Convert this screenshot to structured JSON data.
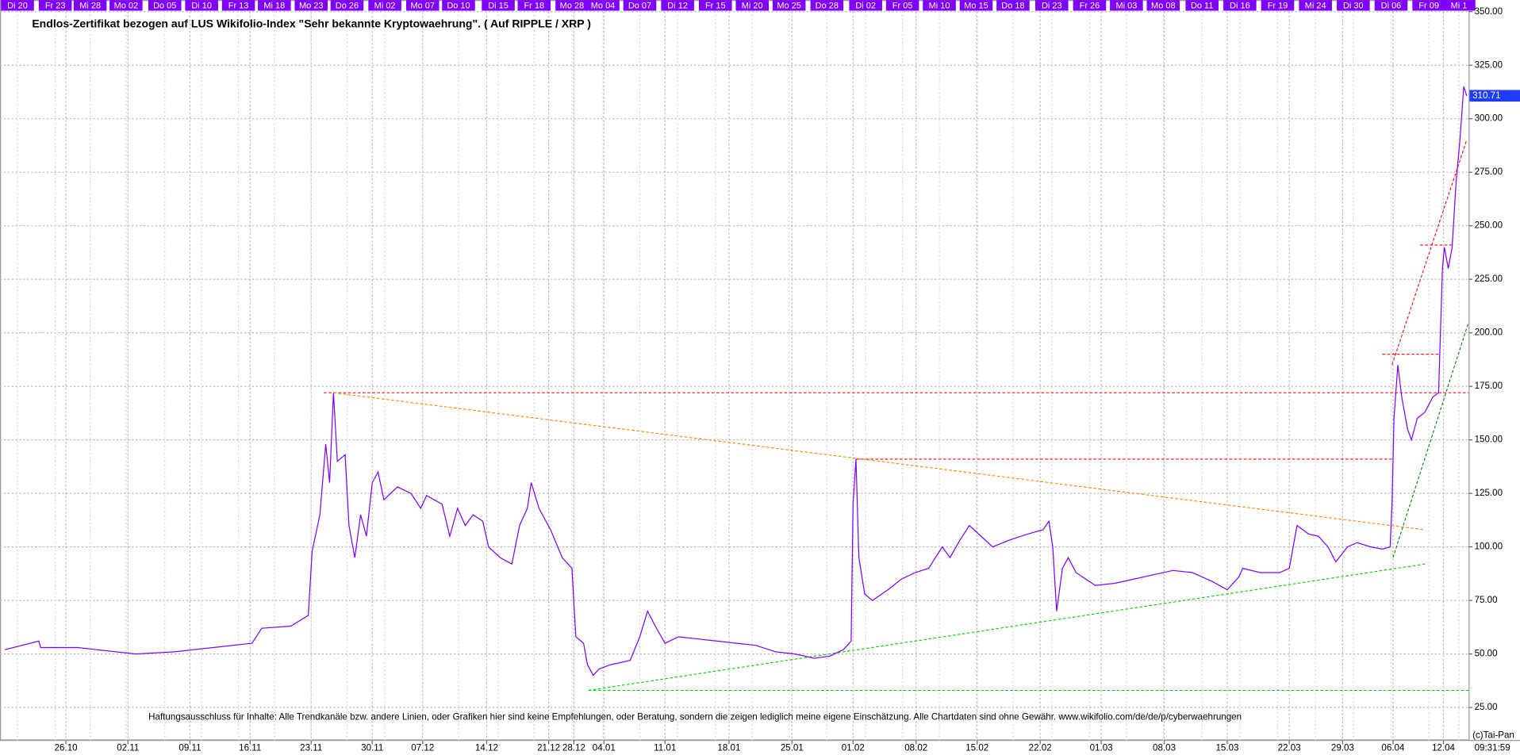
{
  "chart_data": {
    "type": "line",
    "title": "Endlos-Zertifikat bezogen auf LUS Wikifolio-Index \"Sehr bekannte Kryptowaehrung\". ( Auf RIPPLE / XRP )",
    "disclaimer": "Haftungsausschluss für Inhalte: Alle Trendkanäle bzw. andere Linien, oder Grafiken hier sind keine Empfehlungen, oder Beratung, sondern die zeigen lediglich meine eigene Einschätzung. Alle Chartdaten sind ohne Gewähr.  www.wikifolio.com/de/de/p/cyberwaehrungen",
    "copyright": "(c)Tai-Pan",
    "time": "09:31:59",
    "color": "#8000ff",
    "grid": true,
    "last_value": 310.71,
    "last_value_label": "310.71",
    "xlim": [
      0,
      1515
    ],
    "ylim": [
      7,
      355
    ],
    "yticks": [
      {
        "value": 25,
        "label": "25.00"
      },
      {
        "value": 50,
        "label": "50.00"
      },
      {
        "value": 75,
        "label": "75.00"
      },
      {
        "value": 100,
        "label": "100.00"
      },
      {
        "value": 125,
        "label": "125.00"
      },
      {
        "value": 150,
        "label": "150.00"
      },
      {
        "value": 175,
        "label": "175.00"
      },
      {
        "value": 200,
        "label": "200.00"
      },
      {
        "value": 225,
        "label": "225.00"
      },
      {
        "value": 250,
        "label": "250.00"
      },
      {
        "value": 275,
        "label": "275.00"
      },
      {
        "value": 300,
        "label": "300.00"
      },
      {
        "value": 325,
        "label": "325.00"
      },
      {
        "value": 350,
        "label": "350.00"
      }
    ],
    "xticks": [
      {
        "value": 68,
        "label": "26.10"
      },
      {
        "value": 132,
        "label": "02.11"
      },
      {
        "value": 196,
        "label": "09.11"
      },
      {
        "value": 258,
        "label": "16.11"
      },
      {
        "value": 321,
        "label": "23.11"
      },
      {
        "value": 384,
        "label": "30.11"
      },
      {
        "value": 436,
        "label": "07.12"
      },
      {
        "value": 502,
        "label": "14.12"
      },
      {
        "value": 566,
        "label": "21.12"
      },
      {
        "value": 592,
        "label": "28.12"
      },
      {
        "value": 623,
        "label": "04.01"
      },
      {
        "value": 686,
        "label": "11.01"
      },
      {
        "value": 752,
        "label": "18.01"
      },
      {
        "value": 817,
        "label": "25.01"
      },
      {
        "value": 880,
        "label": "01.02"
      },
      {
        "value": 945,
        "label": "08.02"
      },
      {
        "value": 1008,
        "label": "15.02"
      },
      {
        "value": 1073,
        "label": "22.02"
      },
      {
        "value": 1136,
        "label": "01.03"
      },
      {
        "value": 1201,
        "label": "08.03"
      },
      {
        "value": 1266,
        "label": "15.03"
      },
      {
        "value": 1330,
        "label": "22.03"
      },
      {
        "value": 1385,
        "label": "29.03"
      },
      {
        "value": 1437,
        "label": "06.04"
      },
      {
        "value": 1489,
        "label": "12.04"
      }
    ],
    "top_ticks": [
      {
        "value": 18,
        "label": "Di 20"
      },
      {
        "value": 57,
        "label": "Fr 23"
      },
      {
        "value": 93,
        "label": "Mi 28"
      },
      {
        "value": 130,
        "label": "Mo 02"
      },
      {
        "value": 170,
        "label": "Do 05"
      },
      {
        "value": 208,
        "label": "Di 10"
      },
      {
        "value": 246,
        "label": "Fr 13"
      },
      {
        "value": 283,
        "label": "Mi 18"
      },
      {
        "value": 321,
        "label": "Mo 23"
      },
      {
        "value": 358,
        "label": "Do 26"
      },
      {
        "value": 397,
        "label": "Mi 02"
      },
      {
        "value": 436,
        "label": "Mo 07"
      },
      {
        "value": 473,
        "label": "Do 10"
      },
      {
        "value": 514,
        "label": "Di 15"
      },
      {
        "value": 551,
        "label": "Fr 18"
      },
      {
        "value": 590,
        "label": "Mo 28"
      },
      {
        "value": 622,
        "label": "Mo 04"
      },
      {
        "value": 660,
        "label": "Do 07"
      },
      {
        "value": 699,
        "label": "Di 12"
      },
      {
        "value": 738,
        "label": "Fr 15"
      },
      {
        "value": 776,
        "label": "Mi 20"
      },
      {
        "value": 814,
        "label": "Mo 25"
      },
      {
        "value": 853,
        "label": "Do 28"
      },
      {
        "value": 893,
        "label": "Di 02"
      },
      {
        "value": 931,
        "label": "Fr 05"
      },
      {
        "value": 969,
        "label": "Mi 10"
      },
      {
        "value": 1007,
        "label": "Mo 15"
      },
      {
        "value": 1045,
        "label": "Do 18"
      },
      {
        "value": 1085,
        "label": "Di 23"
      },
      {
        "value": 1124,
        "label": "Fr 26"
      },
      {
        "value": 1162,
        "label": "Mi 03"
      },
      {
        "value": 1200,
        "label": "Mo 08"
      },
      {
        "value": 1240,
        "label": "Do 11"
      },
      {
        "value": 1279,
        "label": "Di 16"
      },
      {
        "value": 1318,
        "label": "Fr 19"
      },
      {
        "value": 1357,
        "label": "Mi 24"
      },
      {
        "value": 1396,
        "label": "Di 30"
      },
      {
        "value": 1435,
        "label": "Di 06"
      },
      {
        "value": 1474,
        "label": "Fr 09"
      },
      {
        "value": 1505,
        "label": "Mi 1"
      }
    ],
    "x": [
      5,
      40,
      42,
      80,
      100,
      140,
      180,
      220,
      260,
      270,
      300,
      318,
      322,
      330,
      336,
      340,
      344,
      348,
      356,
      360,
      366,
      372,
      378,
      384,
      390,
      396,
      410,
      424,
      434,
      440,
      456,
      464,
      472,
      480,
      488,
      498,
      504,
      516,
      528,
      536,
      544,
      548,
      556,
      568,
      580,
      590,
      594,
      602,
      606,
      612,
      618,
      630,
      650,
      660,
      668,
      676,
      686,
      700,
      720,
      740,
      760,
      780,
      800,
      820,
      840,
      856,
      870,
      878,
      880,
      883,
      886,
      892,
      900,
      916,
      930,
      944,
      958,
      972,
      980,
      990,
      1000,
      1012,
      1024,
      1040,
      1060,
      1076,
      1082,
      1086,
      1090,
      1096,
      1102,
      1110,
      1120,
      1130,
      1150,
      1170,
      1190,
      1210,
      1230,
      1250,
      1266,
      1278,
      1282,
      1300,
      1320,
      1330,
      1338,
      1350,
      1360,
      1370,
      1378,
      1390,
      1400,
      1414,
      1426,
      1434,
      1436,
      1438,
      1442,
      1446,
      1452,
      1456,
      1462,
      1470,
      1478,
      1484,
      1488,
      1490,
      1494,
      1498,
      1502,
      1506,
      1510,
      1513
    ],
    "values": [
      52,
      56,
      53,
      53,
      52,
      50,
      51,
      53,
      55,
      62,
      63,
      68,
      98,
      115,
      148,
      130,
      172,
      140,
      143,
      110,
      95,
      115,
      105,
      130,
      135,
      122,
      128,
      125,
      118,
      124,
      120,
      105,
      118,
      110,
      115,
      112,
      100,
      95,
      92,
      110,
      118,
      130,
      118,
      108,
      95,
      90,
      58,
      55,
      45,
      40,
      43,
      45,
      47,
      58,
      70,
      63,
      55,
      58,
      57,
      56,
      55,
      54,
      51,
      50,
      48,
      49,
      52,
      56,
      120,
      141,
      95,
      78,
      75,
      80,
      85,
      88,
      90,
      100,
      95,
      103,
      110,
      105,
      100,
      103,
      106,
      108,
      112,
      100,
      70,
      90,
      95,
      88,
      85,
      82,
      83,
      85,
      87,
      89,
      88,
      84,
      80,
      86,
      90,
      88,
      88,
      90,
      110,
      106,
      105,
      100,
      93,
      100,
      102,
      100,
      99,
      100,
      120,
      160,
      185,
      170,
      155,
      150,
      160,
      163,
      170,
      172,
      230,
      240,
      230,
      240,
      270,
      290,
      315,
      310.71
    ],
    "trendlines": [
      {
        "x1": 334,
        "y1": 172,
        "x2": 1515,
        "y2": 172,
        "color": "#ff0000"
      },
      {
        "x1": 883,
        "y1": 141,
        "x2": 1437,
        "y2": 141,
        "color": "#ff0000"
      },
      {
        "x1": 344,
        "y1": 172,
        "x2": 1470,
        "y2": 108,
        "color": "#ff8000"
      },
      {
        "x1": 607,
        "y1": 33,
        "x2": 1470,
        "y2": 92,
        "color": "#00cc00"
      },
      {
        "x1": 607,
        "y1": 33,
        "x2": 1515,
        "y2": 33,
        "color": "#00cc00"
      },
      {
        "x1": 1426,
        "y1": 190,
        "x2": 1486,
        "y2": 190,
        "color": "#ff0000"
      },
      {
        "x1": 1465,
        "y1": 241,
        "x2": 1500,
        "y2": 241,
        "color": "#ff0000"
      },
      {
        "x1": 1436,
        "y1": 185,
        "x2": 1513,
        "y2": 290,
        "color": "#ff0000"
      },
      {
        "x1": 1437,
        "y1": 95,
        "x2": 1515,
        "y2": 205,
        "color": "#008000"
      }
    ]
  }
}
